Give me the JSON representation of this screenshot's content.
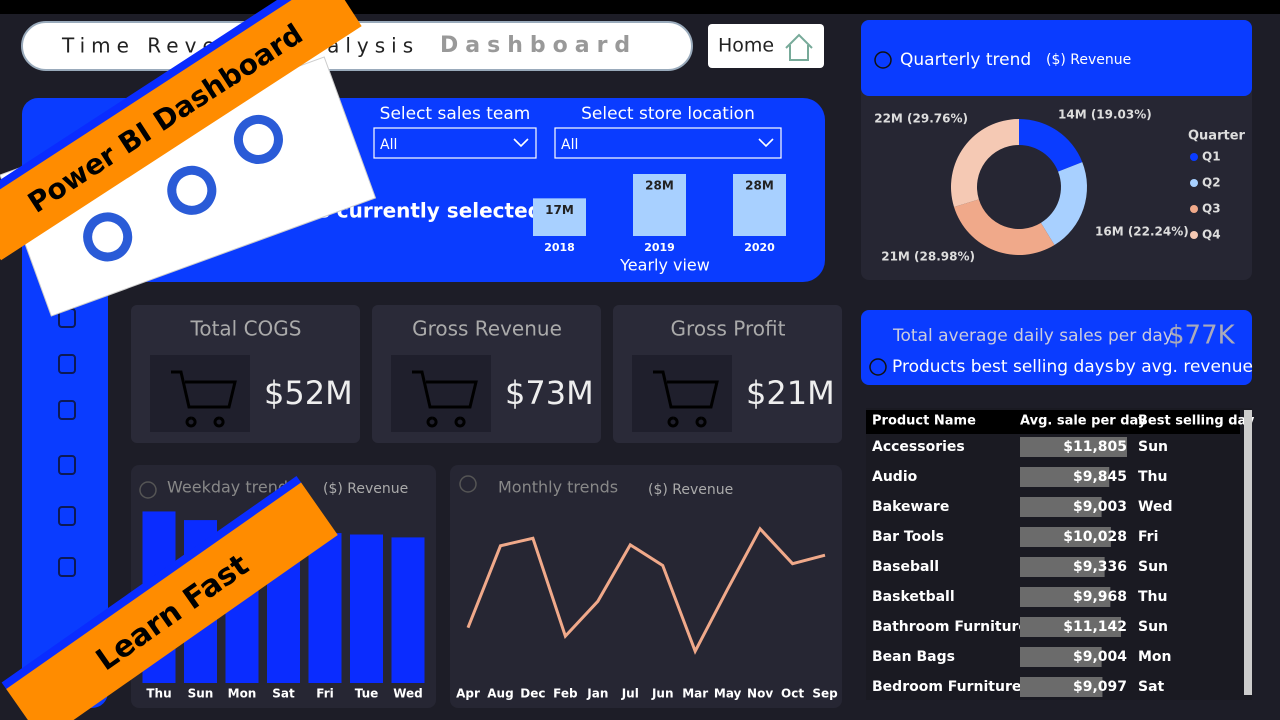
{
  "header": {
    "title": "Time Revenue Analysis",
    "title_suffix": "Dashboard",
    "home": "Home"
  },
  "filters": [
    {
      "label": "Select sales team",
      "value": "All"
    },
    {
      "label": "Select store location",
      "value": "All"
    }
  ],
  "selection_note": "Revenue is what is currently selected",
  "yearly": {
    "type": "bar",
    "title": "Yearly view",
    "categories": [
      "2018",
      "2019",
      "2020"
    ],
    "values": [
      17,
      28,
      28
    ],
    "value_labels": [
      "17M",
      "28M",
      "28M"
    ],
    "ylim": [
      0,
      28
    ],
    "color": "#a8d0ff"
  },
  "quarterly": {
    "type": "pie",
    "title": "Quarterly trend",
    "subtitle": "($) Revenue",
    "legend_title": "Quarter",
    "categories": [
      "Q1",
      "Q2",
      "Q3",
      "Q4"
    ],
    "values": [
      19.03,
      22.24,
      28.98,
      29.76
    ],
    "value_labels": [
      "14M (19.03%)",
      "16M (22.24%)",
      "21M (28.98%)",
      "22M (29.76%)"
    ],
    "colors": [
      "#0a3cff",
      "#a8d0ff",
      "#f0a98a",
      "#f5c9b4"
    ]
  },
  "kpis": [
    {
      "title": "Total COGS",
      "value": "$52M"
    },
    {
      "title": "Gross Revenue",
      "value": "$73M"
    },
    {
      "title": "Gross Profit",
      "value": "$21M"
    }
  ],
  "daily": {
    "title": "Total average daily sales per day",
    "value": "$77K",
    "subtitle": "Products best selling days",
    "subtitle_suffix": "by avg. revenue"
  },
  "table": {
    "columns": [
      "Product Name",
      "Avg. sale per day",
      "Best selling day"
    ],
    "rows": [
      {
        "product": "Accessories",
        "avg_sale": 11805,
        "avg_sale_label": "$11,805",
        "day": "Sun"
      },
      {
        "product": "Audio",
        "avg_sale": 9845,
        "avg_sale_label": "$9,845",
        "day": "Thu"
      },
      {
        "product": "Bakeware",
        "avg_sale": 9003,
        "avg_sale_label": "$9,003",
        "day": "Wed"
      },
      {
        "product": "Bar Tools",
        "avg_sale": 10028,
        "avg_sale_label": "$10,028",
        "day": "Fri"
      },
      {
        "product": "Baseball",
        "avg_sale": 9336,
        "avg_sale_label": "$9,336",
        "day": "Sun"
      },
      {
        "product": "Basketball",
        "avg_sale": 9968,
        "avg_sale_label": "$9,968",
        "day": "Thu"
      },
      {
        "product": "Bathroom Furniture",
        "avg_sale": 11142,
        "avg_sale_label": "$11,142",
        "day": "Sun"
      },
      {
        "product": "Bean Bags",
        "avg_sale": 9004,
        "avg_sale_label": "$9,004",
        "day": "Mon"
      },
      {
        "product": "Bedroom Furniture",
        "avg_sale": 9097,
        "avg_sale_label": "$9,097",
        "day": "Sat"
      }
    ],
    "bar_color": "#6b6b6b"
  },
  "weekday": {
    "type": "bar",
    "title": "Weekday trends",
    "subtitle": "($) Revenue",
    "categories": [
      "Thu",
      "Sun",
      "Mon",
      "Sat",
      "Fri",
      "Tue",
      "Wed"
    ],
    "values": [
      11.9,
      11.3,
      10.9,
      10.9,
      10.4,
      10.3,
      10.1
    ],
    "ylim": [
      0,
      12
    ],
    "color": "#0a2cff"
  },
  "monthly": {
    "type": "line",
    "title": "Monthly trends",
    "subtitle": "($) Revenue",
    "categories": [
      "Apr",
      "Aug",
      "Dec",
      "Feb",
      "Jan",
      "Jul",
      "Jun",
      "Mar",
      "May",
      "Nov",
      "Oct",
      "Sep"
    ],
    "values": [
      5.75,
      6.62,
      6.7,
      5.66,
      6.03,
      6.63,
      6.41,
      5.5,
      6.16,
      6.8,
      6.43,
      6.52
    ],
    "ylim": [
      5.3,
      7.0
    ],
    "color": "#f0a98a"
  },
  "overlay": {
    "banner_top": "Power BI Dashboard",
    "banner_bottom": "Learn Fast"
  }
}
